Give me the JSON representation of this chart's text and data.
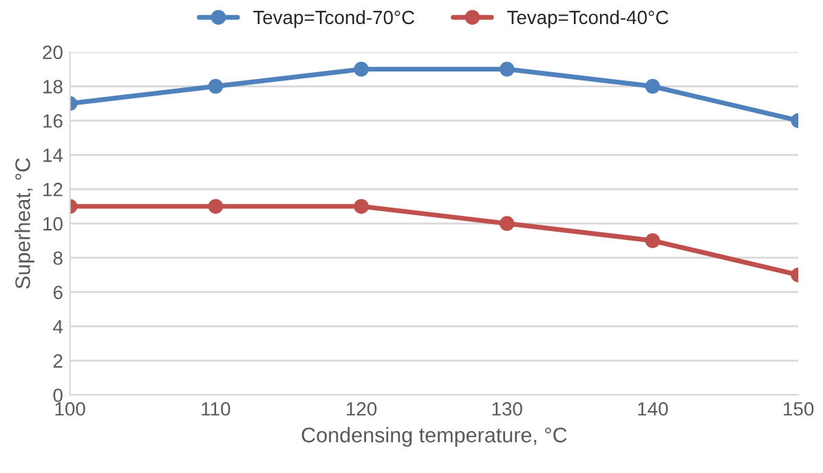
{
  "chart_data": {
    "type": "line",
    "xlabel": "Condensing temperature, °C",
    "ylabel": "Superheat, °C",
    "x": [
      100,
      110,
      120,
      130,
      140,
      150
    ],
    "series": [
      {
        "name": "Tevap=Tcond-70°C",
        "color": "#4f81bd",
        "values": [
          17,
          18,
          19,
          19,
          18,
          16
        ]
      },
      {
        "name": "Tevap=Tcond-40°C",
        "color": "#c0504d",
        "values": [
          11,
          11,
          11,
          10,
          9,
          7
        ]
      }
    ],
    "xlim": [
      100,
      150
    ],
    "xticks": [
      100,
      110,
      120,
      130,
      140,
      150
    ],
    "ylim": [
      0,
      20
    ],
    "yticks": [
      0,
      2,
      4,
      6,
      8,
      10,
      12,
      14,
      16,
      18,
      20
    ],
    "grid": "y",
    "legend": "top",
    "marker": "circle",
    "line_style": "solid"
  }
}
